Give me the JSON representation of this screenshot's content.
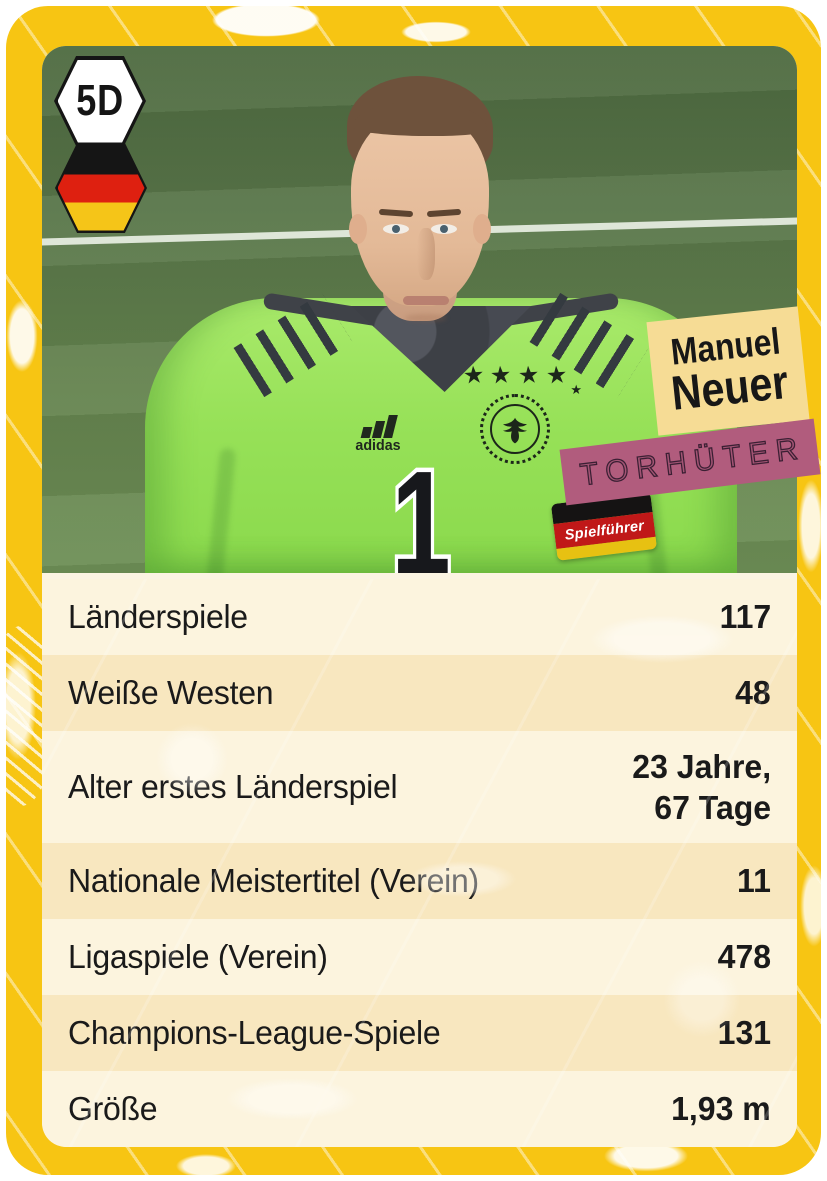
{
  "card": {
    "code": "5D",
    "country": "germany-flag",
    "player": {
      "first_name": "Manuel",
      "last_name": "Neuer",
      "position_label": "TORHÜTER"
    },
    "photo": {
      "jersey_number": "1",
      "brand_wordmark": "adidas",
      "armband_label": "Spielführer",
      "badge_stars": 4
    },
    "icons": {
      "star": "★"
    },
    "stats": [
      {
        "label": "Länderspiele",
        "value": "117"
      },
      {
        "label": "Weiße Westen",
        "value": "48"
      },
      {
        "label": "Alter erstes Länderspiel",
        "value": "23 Jahre,\n67 Tage"
      },
      {
        "label": "Nationale Meistertitel (Verein)",
        "value": "11"
      },
      {
        "label": "Ligaspiele (Verein)",
        "value": "478"
      },
      {
        "label": "Champions-League-Spiele",
        "value": "131"
      },
      {
        "label": "Größe",
        "value": "1,93 m"
      }
    ],
    "colors": {
      "border_yellow": "#F7C513",
      "row_light": "#FCF4DE",
      "row_dark": "#F8E7BF",
      "tag_cream": "#F6DC95",
      "band_pink": "#B15C7D",
      "flag_black": "#151515",
      "flag_red": "#DE2010",
      "flag_gold": "#F5C518"
    }
  }
}
